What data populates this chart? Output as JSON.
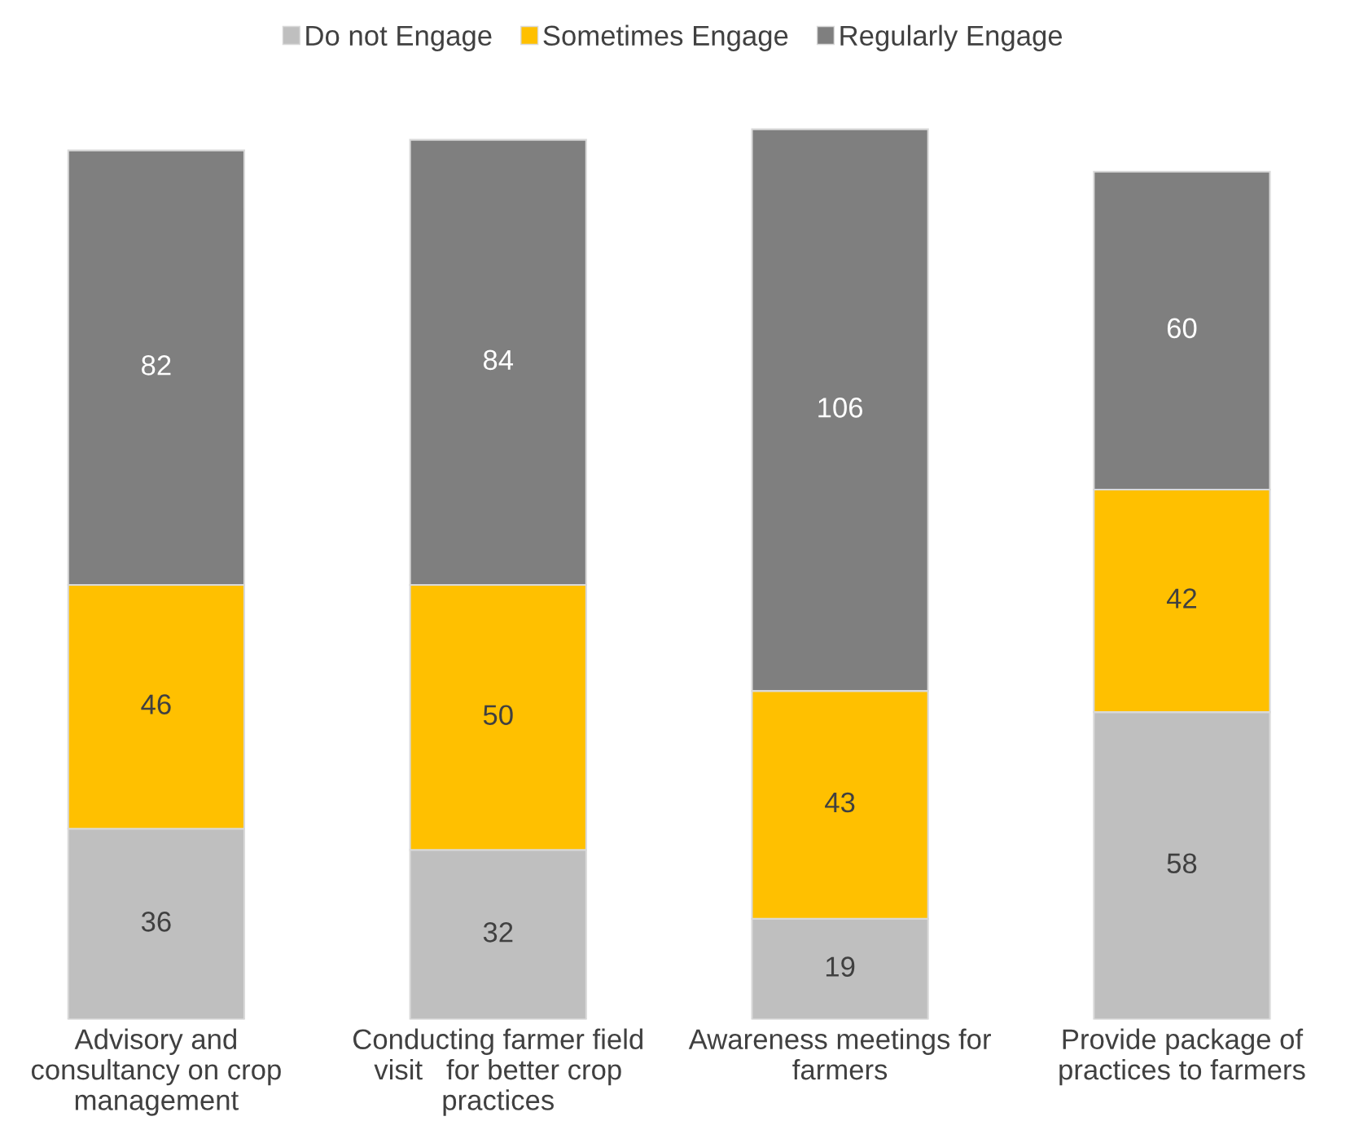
{
  "chart_data": {
    "type": "bar",
    "stacked": true,
    "data_labels": true,
    "legend": "top",
    "grid": false,
    "categories": [
      "Advisory and\nconsultancy on crop\nmanagement",
      "Conducting farmer field\nvisit   for better crop\npractices",
      "Awareness meetings for\nfarmers",
      "Provide package of\npractices to farmers"
    ],
    "series": [
      {
        "name": "Do not Engage",
        "color": "#bfbfbf",
        "values": [
          36,
          32,
          19,
          58
        ]
      },
      {
        "name": "Sometimes Engage",
        "color": "#ffc000",
        "values": [
          46,
          50,
          43,
          42
        ]
      },
      {
        "name": "Regularly Engage",
        "color": "#7f7f7f",
        "values": [
          82,
          84,
          106,
          60
        ]
      }
    ]
  }
}
